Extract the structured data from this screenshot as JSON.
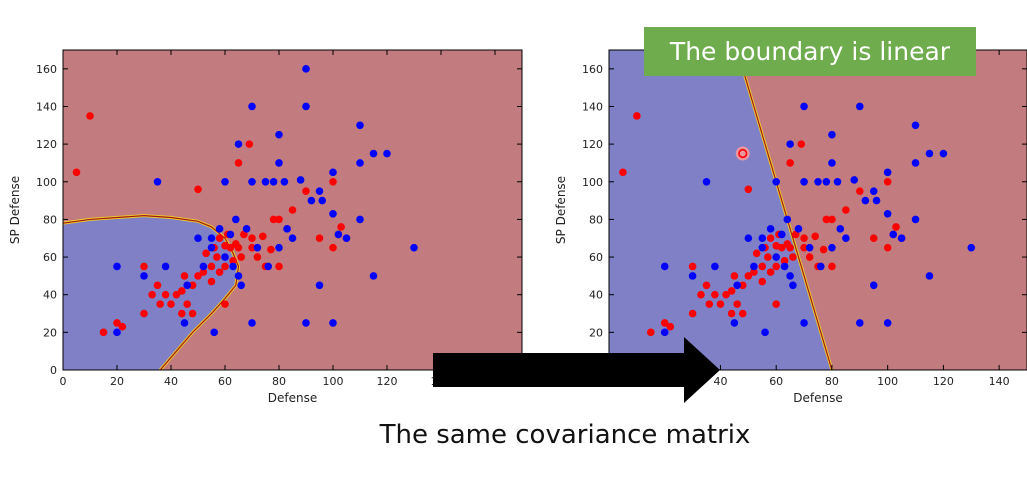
{
  "colors": {
    "region_red": "#c27c7f",
    "region_blue": "#7f80c6",
    "point_red": "#ff0000",
    "point_blue": "#0000ff",
    "boundary_red": "#a01818",
    "boundary_yellow": "#f0d020",
    "banner_green": "#6fac4d",
    "arrow": "#000000"
  },
  "banner": {
    "text": "The boundary is linear"
  },
  "caption": {
    "text": "The same covariance matrix"
  },
  "chart_data": [
    {
      "type": "scatter",
      "xlabel": "Defense",
      "ylabel": "SP Defense",
      "xlim": [
        0,
        170
      ],
      "ylim": [
        0,
        170
      ],
      "xticks": [
        0,
        20,
        40,
        60,
        80,
        100,
        120,
        140,
        160
      ],
      "yticks": [
        0,
        20,
        40,
        60,
        80,
        100,
        120,
        140,
        160
      ],
      "regions": "quadratic boundary: blue region lower-left, red elsewhere",
      "boundary": [
        [
          0,
          78
        ],
        [
          10,
          80
        ],
        [
          20,
          81
        ],
        [
          30,
          82
        ],
        [
          40,
          81
        ],
        [
          50,
          79
        ],
        [
          55,
          76
        ],
        [
          60,
          70
        ],
        [
          63,
          62
        ],
        [
          65,
          55
        ],
        [
          64,
          45
        ],
        [
          60,
          38
        ],
        [
          55,
          30
        ],
        [
          48,
          20
        ],
        [
          42,
          10
        ],
        [
          36,
          0
        ]
      ],
      "series": [
        {
          "color": "red",
          "points": [
            [
              5,
              105
            ],
            [
              10,
              135
            ],
            [
              15,
              20
            ],
            [
              20,
              25
            ],
            [
              22,
              23
            ],
            [
              30,
              30
            ],
            [
              30,
              55
            ],
            [
              33,
              40
            ],
            [
              35,
              45
            ],
            [
              36,
              35
            ],
            [
              38,
              40
            ],
            [
              40,
              35
            ],
            [
              42,
              40
            ],
            [
              44,
              42
            ],
            [
              45,
              50
            ],
            [
              46,
              35
            ],
            [
              48,
              45
            ],
            [
              50,
              96
            ],
            [
              50,
              50
            ],
            [
              52,
              52
            ],
            [
              53,
              62
            ],
            [
              55,
              55
            ],
            [
              55,
              47
            ],
            [
              56,
              65
            ],
            [
              57,
              60
            ],
            [
              58,
              52
            ],
            [
              58,
              70
            ],
            [
              60,
              66
            ],
            [
              60,
              55
            ],
            [
              61,
              72
            ],
            [
              62,
              65
            ],
            [
              63,
              58
            ],
            [
              64,
              67
            ],
            [
              65,
              110
            ],
            [
              65,
              65
            ],
            [
              66,
              60
            ],
            [
              67,
              72
            ],
            [
              69,
              120
            ],
            [
              70,
              65
            ],
            [
              70,
              70
            ],
            [
              72,
              60
            ],
            [
              74,
              71
            ],
            [
              75,
              55
            ],
            [
              77,
              64
            ],
            [
              78,
              80
            ],
            [
              80,
              80
            ],
            [
              80,
              55
            ],
            [
              85,
              85
            ],
            [
              90,
              95
            ],
            [
              95,
              70
            ],
            [
              100,
              65
            ],
            [
              100,
              100
            ],
            [
              102,
              72
            ],
            [
              103,
              76
            ],
            [
              105,
              70
            ],
            [
              60,
              35
            ],
            [
              48,
              30
            ],
            [
              44,
              30
            ]
          ]
        },
        {
          "color": "blue",
          "points": [
            [
              20,
              55
            ],
            [
              20,
              20
            ],
            [
              30,
              50
            ],
            [
              35,
              100
            ],
            [
              38,
              55
            ],
            [
              45,
              25
            ],
            [
              46,
              45
            ],
            [
              50,
              70
            ],
            [
              52,
              55
            ],
            [
              55,
              65
            ],
            [
              55,
              70
            ],
            [
              56,
              20
            ],
            [
              58,
              75
            ],
            [
              60,
              60
            ],
            [
              60,
              100
            ],
            [
              62,
              72
            ],
            [
              63,
              55
            ],
            [
              64,
              80
            ],
            [
              65,
              120
            ],
            [
              65,
              50
            ],
            [
              66,
              45
            ],
            [
              68,
              75
            ],
            [
              70,
              140
            ],
            [
              70,
              100
            ],
            [
              70,
              25
            ],
            [
              72,
              65
            ],
            [
              75,
              100
            ],
            [
              76,
              55
            ],
            [
              78,
              100
            ],
            [
              80,
              125
            ],
            [
              80,
              110
            ],
            [
              80,
              65
            ],
            [
              82,
              100
            ],
            [
              83,
              75
            ],
            [
              85,
              70
            ],
            [
              88,
              101
            ],
            [
              90,
              160
            ],
            [
              90,
              140
            ],
            [
              90,
              25
            ],
            [
              92,
              90
            ],
            [
              95,
              95
            ],
            [
              95,
              45
            ],
            [
              96,
              90
            ],
            [
              100,
              83
            ],
            [
              100,
              105
            ],
            [
              100,
              25
            ],
            [
              102,
              72
            ],
            [
              105,
              70
            ],
            [
              110,
              130
            ],
            [
              110,
              110
            ],
            [
              110,
              80
            ],
            [
              115,
              115
            ],
            [
              115,
              50
            ],
            [
              120,
              115
            ],
            [
              130,
              65
            ]
          ]
        }
      ]
    },
    {
      "type": "scatter",
      "xlabel": "Defense",
      "ylabel": "SP Defense",
      "xlim": [
        0,
        150
      ],
      "ylim": [
        0,
        170
      ],
      "xticks": [
        0,
        20,
        40,
        60,
        80,
        100,
        120,
        140
      ],
      "yticks": [
        0,
        20,
        40,
        60,
        80,
        100,
        120,
        140,
        160
      ],
      "regions": "linear boundary: blue region left, red region right",
      "boundary": [
        [
          46,
          170
        ],
        [
          80,
          0
        ]
      ],
      "highlighted_point": [
        48,
        115
      ],
      "series": [
        {
          "color": "red",
          "points": [
            [
              5,
              105
            ],
            [
              10,
              135
            ],
            [
              15,
              20
            ],
            [
              20,
              25
            ],
            [
              22,
              23
            ],
            [
              30,
              30
            ],
            [
              30,
              55
            ],
            [
              33,
              40
            ],
            [
              35,
              45
            ],
            [
              36,
              35
            ],
            [
              38,
              40
            ],
            [
              40,
              35
            ],
            [
              42,
              40
            ],
            [
              44,
              42
            ],
            [
              45,
              50
            ],
            [
              46,
              35
            ],
            [
              48,
              45
            ],
            [
              50,
              96
            ],
            [
              50,
              50
            ],
            [
              52,
              52
            ],
            [
              53,
              62
            ],
            [
              55,
              55
            ],
            [
              55,
              47
            ],
            [
              56,
              65
            ],
            [
              57,
              60
            ],
            [
              58,
              52
            ],
            [
              58,
              70
            ],
            [
              60,
              66
            ],
            [
              60,
              55
            ],
            [
              61,
              72
            ],
            [
              62,
              65
            ],
            [
              63,
              58
            ],
            [
              64,
              67
            ],
            [
              65,
              110
            ],
            [
              65,
              65
            ],
            [
              66,
              60
            ],
            [
              67,
              72
            ],
            [
              69,
              120
            ],
            [
              70,
              65
            ],
            [
              70,
              70
            ],
            [
              72,
              60
            ],
            [
              74,
              71
            ],
            [
              75,
              55
            ],
            [
              77,
              64
            ],
            [
              78,
              80
            ],
            [
              80,
              80
            ],
            [
              80,
              55
            ],
            [
              85,
              85
            ],
            [
              90,
              95
            ],
            [
              95,
              70
            ],
            [
              100,
              65
            ],
            [
              100,
              100
            ],
            [
              102,
              72
            ],
            [
              103,
              76
            ],
            [
              105,
              70
            ],
            [
              60,
              35
            ],
            [
              48,
              30
            ],
            [
              44,
              30
            ]
          ]
        },
        {
          "color": "blue",
          "points": [
            [
              20,
              55
            ],
            [
              20,
              20
            ],
            [
              30,
              50
            ],
            [
              35,
              100
            ],
            [
              38,
              55
            ],
            [
              45,
              25
            ],
            [
              46,
              45
            ],
            [
              50,
              70
            ],
            [
              52,
              55
            ],
            [
              55,
              65
            ],
            [
              55,
              70
            ],
            [
              56,
              20
            ],
            [
              58,
              75
            ],
            [
              60,
              60
            ],
            [
              60,
              100
            ],
            [
              62,
              72
            ],
            [
              63,
              55
            ],
            [
              64,
              80
            ],
            [
              65,
              120
            ],
            [
              65,
              50
            ],
            [
              66,
              45
            ],
            [
              68,
              75
            ],
            [
              70,
              140
            ],
            [
              70,
              100
            ],
            [
              70,
              25
            ],
            [
              72,
              65
            ],
            [
              75,
              100
            ],
            [
              76,
              55
            ],
            [
              78,
              100
            ],
            [
              80,
              125
            ],
            [
              80,
              110
            ],
            [
              80,
              65
            ],
            [
              82,
              100
            ],
            [
              83,
              75
            ],
            [
              85,
              70
            ],
            [
              88,
              101
            ],
            [
              90,
              160
            ],
            [
              90,
              140
            ],
            [
              90,
              25
            ],
            [
              92,
              90
            ],
            [
              95,
              95
            ],
            [
              95,
              45
            ],
            [
              96,
              90
            ],
            [
              100,
              83
            ],
            [
              100,
              105
            ],
            [
              100,
              25
            ],
            [
              102,
              72
            ],
            [
              105,
              70
            ],
            [
              110,
              130
            ],
            [
              110,
              110
            ],
            [
              110,
              80
            ],
            [
              115,
              115
            ],
            [
              115,
              50
            ],
            [
              120,
              115
            ],
            [
              130,
              65
            ]
          ]
        }
      ]
    }
  ]
}
